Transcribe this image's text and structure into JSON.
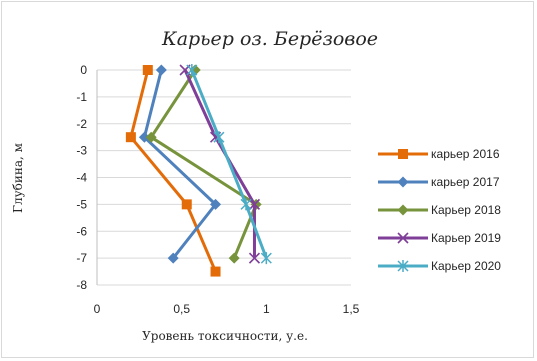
{
  "chart_data": {
    "type": "line",
    "title": "Карьер оз. Берёзовое",
    "xlabel": "Уровень токсичности, у.е.",
    "ylabel": "Глубина, м",
    "xlim": [
      0,
      1.5
    ],
    "ylim": [
      -8,
      0
    ],
    "x_ticks": [
      "0",
      "0,5",
      "1",
      "1,5"
    ],
    "y_ticks": [
      "0",
      "-1",
      "-2",
      "-3",
      "-4",
      "-5",
      "-6",
      "-7",
      "-8"
    ],
    "grid": "horizontal",
    "legend_position": "right",
    "series": [
      {
        "name": "карьер 2016",
        "color": "#e36c09",
        "marker": "square",
        "points": [
          [
            0.3,
            0
          ],
          [
            0.2,
            -2.5
          ],
          [
            0.53,
            -5
          ],
          [
            0.7,
            -7.5
          ]
        ]
      },
      {
        "name": "карьер 2017",
        "color": "#4f81bd",
        "marker": "diamond",
        "points": [
          [
            0.38,
            0
          ],
          [
            0.28,
            -2.5
          ],
          [
            0.7,
            -5
          ],
          [
            0.45,
            -7
          ]
        ]
      },
      {
        "name": "Карьер 2018",
        "color": "#77933c",
        "marker": "diamond",
        "points": [
          [
            0.58,
            0
          ],
          [
            0.32,
            -2.5
          ],
          [
            0.94,
            -5
          ],
          [
            0.81,
            -7
          ]
        ]
      },
      {
        "name": "Карьер 2019",
        "color": "#7f3f98",
        "marker": "x",
        "points": [
          [
            0.52,
            0
          ],
          [
            0.7,
            -2.5
          ],
          [
            0.93,
            -5
          ],
          [
            0.93,
            -7
          ]
        ]
      },
      {
        "name": "Карьер 2020",
        "color": "#4bacc6",
        "marker": "star",
        "points": [
          [
            0.56,
            0
          ],
          [
            0.72,
            -2.5
          ],
          [
            0.88,
            -5
          ],
          [
            1.0,
            -7
          ]
        ]
      }
    ]
  }
}
